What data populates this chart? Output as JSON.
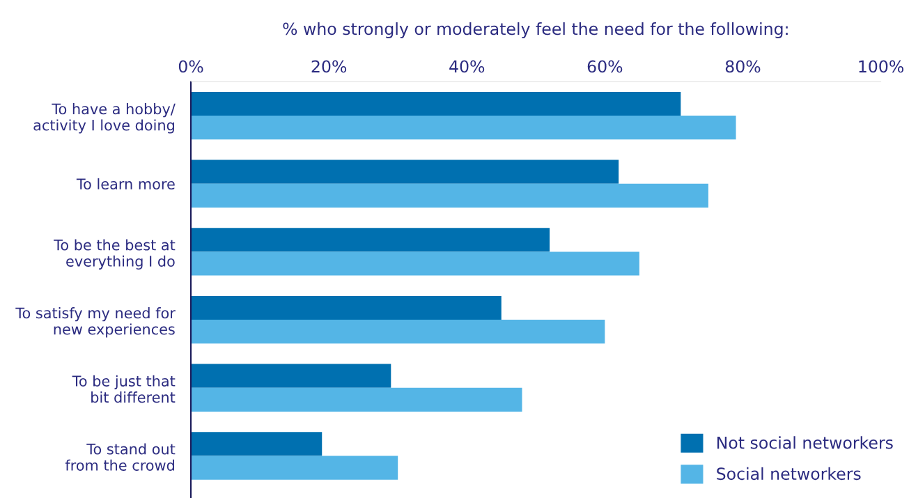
{
  "chart_data": {
    "type": "bar",
    "orientation": "horizontal",
    "xlabel": "% who strongly or moderately feel the need for the following:",
    "categories": [
      "To have a hobby/\nactivity I love doing",
      "To learn more",
      "To be the best at\neverything I do",
      "To satisfy my need for\nnew experiences",
      "To be just that\nbit different",
      "To stand out\nfrom the crowd"
    ],
    "series": [
      {
        "name": "Not social networkers",
        "color": "#0070b0",
        "values": [
          71,
          62,
          52,
          45,
          29,
          19
        ]
      },
      {
        "name": "Social networkers",
        "color": "#54b5e6",
        "values": [
          79,
          75,
          65,
          60,
          48,
          30
        ]
      }
    ],
    "xlim": [
      0,
      100
    ],
    "xticks": [
      {
        "value": 0,
        "label": "0%"
      },
      {
        "value": 20,
        "label": "20%"
      },
      {
        "value": 40,
        "label": "40%"
      },
      {
        "value": 60,
        "label": "60%"
      },
      {
        "value": 80,
        "label": "80%"
      },
      {
        "value": 100,
        "label": "100%"
      }
    ],
    "grid": false,
    "legend": "bottom right"
  }
}
